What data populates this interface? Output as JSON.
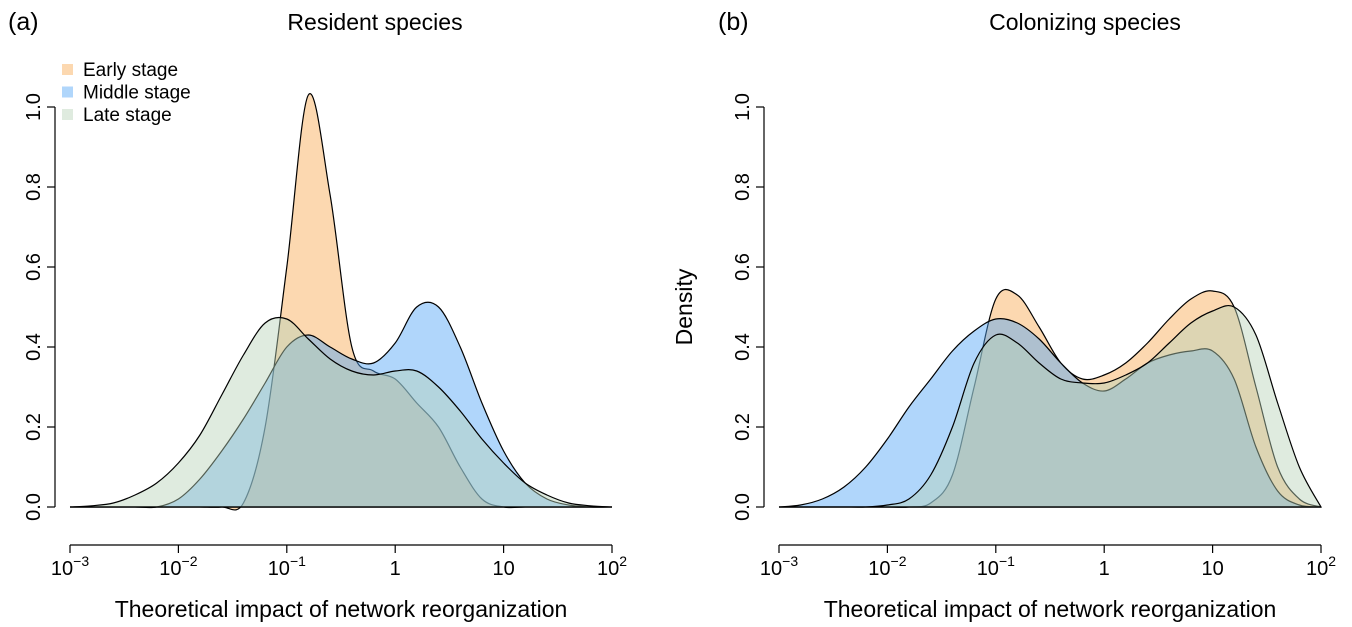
{
  "chart_data": [
    {
      "type": "area",
      "panel_label": "(a)",
      "title": "Resident species",
      "x_label": "Theoretical impact of network reorganization",
      "x_log": true,
      "legend": "top-left",
      "xlim": [
        0.001,
        100
      ],
      "xticks": [
        {
          "value": 0.001,
          "label": "10",
          "exponent": "−3"
        },
        {
          "value": 0.01,
          "label": "10",
          "exponent": "−2"
        },
        {
          "value": 0.1,
          "label": "10",
          "exponent": "−1"
        },
        1,
        10,
        {
          "value": 100,
          "label": "10",
          "exponent": "2"
        }
      ],
      "ylim": [
        0,
        1
      ],
      "yticks": [
        {
          "value": 0,
          "label": "0.0"
        },
        {
          "value": 0.2,
          "label": "0.2"
        },
        {
          "value": 0.4,
          "label": "0.4"
        },
        {
          "value": 0.6,
          "label": "0.6"
        },
        {
          "value": 0.8,
          "label": "0.8"
        },
        {
          "value": 1,
          "label": "1.0"
        }
      ],
      "x": [
        0.001,
        0.00158,
        0.00251,
        0.00398,
        0.00631,
        0.01,
        0.0158,
        0.0251,
        0.0398,
        0.0631,
        0.1,
        0.158,
        0.251,
        0.398,
        0.631,
        1,
        1.58,
        2.51,
        3.98,
        6.31,
        10,
        15.8,
        25.1,
        39.8,
        63.1,
        100
      ],
      "series": [
        {
          "name": "Early stage",
          "color": "#f9a850",
          "values": [
            0,
            0,
            0,
            0,
            0,
            0,
            0,
            0,
            0.01,
            0.2,
            0.6,
            1.03,
            0.78,
            0.4,
            0.34,
            0.32,
            0.26,
            0.2,
            0.1,
            0.02,
            0,
            0,
            0,
            0,
            0,
            0
          ]
        },
        {
          "name": "Middle stage",
          "color": "#4fa3f7",
          "values": [
            0,
            0,
            0,
            0,
            0,
            0.02,
            0.07,
            0.14,
            0.22,
            0.31,
            0.4,
            0.43,
            0.4,
            0.37,
            0.36,
            0.41,
            0.5,
            0.5,
            0.4,
            0.26,
            0.14,
            0.06,
            0.02,
            0.005,
            0,
            0
          ]
        },
        {
          "name": "Late stage",
          "color": "#b9d3b9",
          "values": [
            0,
            0.003,
            0.01,
            0.03,
            0.06,
            0.11,
            0.18,
            0.28,
            0.38,
            0.46,
            0.47,
            0.42,
            0.37,
            0.34,
            0.33,
            0.34,
            0.34,
            0.3,
            0.24,
            0.17,
            0.11,
            0.06,
            0.03,
            0.01,
            0.003,
            0
          ]
        }
      ]
    },
    {
      "type": "area",
      "panel_label": "(b)",
      "title": "Colonizing species",
      "x_label": "Theoretical impact of network reorganization",
      "y_label": "Density",
      "x_log": true,
      "legend": null,
      "xlim": [
        0.001,
        100
      ],
      "xticks": [
        {
          "value": 0.001,
          "label": "10",
          "exponent": "−3"
        },
        {
          "value": 0.01,
          "label": "10",
          "exponent": "−2"
        },
        {
          "value": 0.1,
          "label": "10",
          "exponent": "−1"
        },
        1,
        10,
        {
          "value": 100,
          "label": "10",
          "exponent": "2"
        }
      ],
      "ylim": [
        0,
        1
      ],
      "yticks": [
        {
          "value": 0,
          "label": "0.0"
        },
        {
          "value": 0.2,
          "label": "0.2"
        },
        {
          "value": 0.4,
          "label": "0.4"
        },
        {
          "value": 0.6,
          "label": "0.6"
        },
        {
          "value": 0.8,
          "label": "0.8"
        },
        {
          "value": 1,
          "label": "1.0"
        }
      ],
      "x": [
        0.001,
        0.00158,
        0.00251,
        0.00398,
        0.00631,
        0.01,
        0.0158,
        0.0251,
        0.0398,
        0.0631,
        0.1,
        0.158,
        0.251,
        0.398,
        0.631,
        1,
        1.58,
        2.51,
        3.98,
        6.31,
        10,
        15.8,
        25.1,
        39.8,
        63.1,
        100
      ],
      "series": [
        {
          "color": "#f9a850",
          "values": [
            0,
            0,
            0,
            0,
            0,
            0,
            0,
            0.01,
            0.08,
            0.3,
            0.52,
            0.53,
            0.45,
            0.36,
            0.32,
            0.33,
            0.36,
            0.41,
            0.47,
            0.52,
            0.54,
            0.5,
            0.3,
            0.1,
            0.02,
            0
          ]
        },
        {
          "color": "#4fa3f7",
          "values": [
            0,
            0.005,
            0.02,
            0.05,
            0.1,
            0.17,
            0.25,
            0.32,
            0.39,
            0.44,
            0.47,
            0.46,
            0.42,
            0.36,
            0.31,
            0.29,
            0.32,
            0.36,
            0.38,
            0.39,
            0.39,
            0.32,
            0.15,
            0.04,
            0.005,
            0
          ]
        },
        {
          "color": "#b9d3b9",
          "values": [
            0,
            0,
            0,
            0,
            0,
            0.005,
            0.02,
            0.08,
            0.2,
            0.36,
            0.43,
            0.41,
            0.36,
            0.32,
            0.31,
            0.31,
            0.33,
            0.36,
            0.41,
            0.46,
            0.49,
            0.5,
            0.43,
            0.26,
            0.1,
            0
          ]
        }
      ]
    }
  ]
}
